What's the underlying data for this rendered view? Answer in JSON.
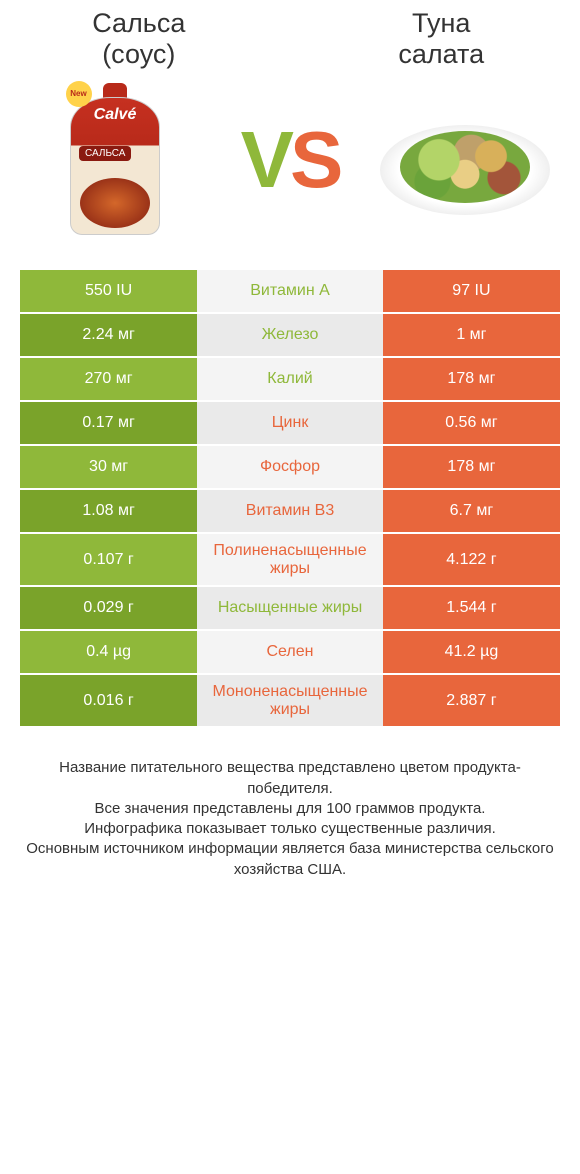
{
  "colors": {
    "green": "#8fb83a",
    "green_dark": "#7aa32a",
    "orange": "#e8663c",
    "mid_bg_light": "#f4f4f4",
    "mid_bg_dark": "#eaeaea",
    "text_on_color": "#ffffff"
  },
  "left_title": "Сальса\n(соус)",
  "right_title": "Туна\nсалата",
  "vs": {
    "v": "V",
    "s": "S"
  },
  "salsa_packet": {
    "brand": "Calvé",
    "label": "САЛЬСА",
    "badge": "New"
  },
  "rows": [
    {
      "nutrient": "Витамин A",
      "left": "550 IU",
      "right": "97 IU",
      "winner": "left"
    },
    {
      "nutrient": "Железо",
      "left": "2.24 мг",
      "right": "1 мг",
      "winner": "left"
    },
    {
      "nutrient": "Калий",
      "left": "270 мг",
      "right": "178 мг",
      "winner": "left"
    },
    {
      "nutrient": "Цинк",
      "left": "0.17 мг",
      "right": "0.56 мг",
      "winner": "right"
    },
    {
      "nutrient": "Фосфор",
      "left": "30 мг",
      "right": "178 мг",
      "winner": "right"
    },
    {
      "nutrient": "Витамин B3",
      "left": "1.08 мг",
      "right": "6.7 мг",
      "winner": "right"
    },
    {
      "nutrient": "Полиненасыщенные жиры",
      "left": "0.107 г",
      "right": "4.122 г",
      "winner": "right"
    },
    {
      "nutrient": "Насыщенные жиры",
      "left": "0.029 г",
      "right": "1.544 г",
      "winner": "left"
    },
    {
      "nutrient": "Селен",
      "left": "0.4 µg",
      "right": "41.2 µg",
      "winner": "right"
    },
    {
      "nutrient": "Мононенасыщенные жиры",
      "left": "0.016 г",
      "right": "2.887 г",
      "winner": "right"
    }
  ],
  "footer_lines": [
    "Название питательного вещества представлено цветом продукта-победителя.",
    "Все значения представлены для 100 граммов продукта.",
    "Инфографика показывает только существенные различия.",
    "Основным источником информации является база министерства сельского хозяйства США."
  ]
}
